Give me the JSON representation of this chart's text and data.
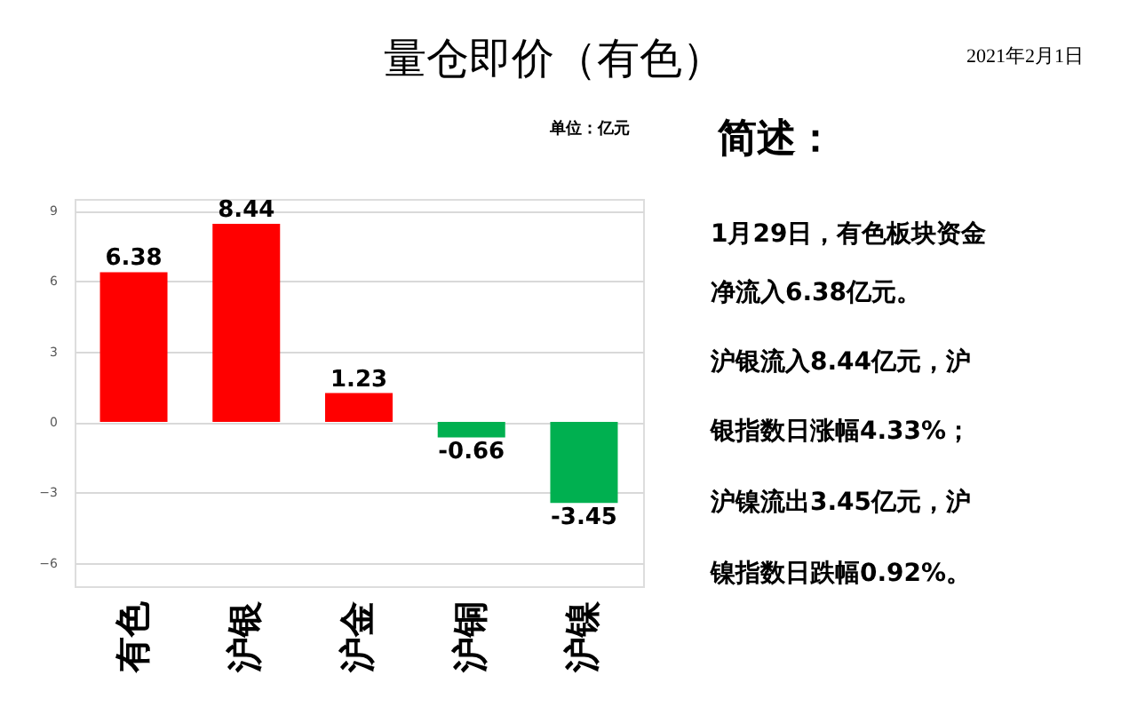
{
  "chart_data": {
    "type": "bar",
    "title": "量仓即价（有色）",
    "categories": [
      "有色",
      "沪银",
      "沪金",
      "沪铜",
      "沪镍"
    ],
    "values": [
      6.38,
      8.44,
      1.23,
      -0.66,
      -3.45
    ],
    "colors": [
      "#ff0000",
      "#ff0000",
      "#ff0000",
      "#00b050",
      "#00b050"
    ],
    "ylim": [
      -7,
      9.5
    ],
    "yticks": [
      -6,
      -3,
      0,
      3,
      6,
      9
    ],
    "grid": "y",
    "data_labels": true,
    "legend": false,
    "annotations": [
      "2021年2月1日",
      "单位：亿元",
      "简述：",
      "1月29日，有色板块资金",
      "净流入6.38亿元。",
      "沪银流入8.44亿元，沪",
      "银指数日涨幅4.33%；",
      "沪镍流出3.45亿元，沪",
      "镍指数日跌幅0.92%。"
    ]
  }
}
